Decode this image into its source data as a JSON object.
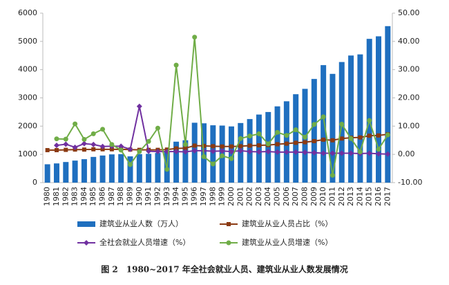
{
  "chart_data": {
    "type": "bar",
    "caption": "图 2　1980~2017 年全社会就业人员、建筑业从业人数发展情况",
    "categories": [
      "1980",
      "1981",
      "1982",
      "1983",
      "1984",
      "1985",
      "1986",
      "1987",
      "1988",
      "1989",
      "1990",
      "1991",
      "1992",
      "1993",
      "1994",
      "1995",
      "1996",
      "1997",
      "1998",
      "1999",
      "2000",
      "2001",
      "2002",
      "2003",
      "2004",
      "2005",
      "2006",
      "2007",
      "2008",
      "2009",
      "2010",
      "2011",
      "2012",
      "2013",
      "2014",
      "2015",
      "2016",
      "2017"
    ],
    "series": [
      {
        "name": "建筑业从业人数（万人）",
        "type": "bar",
        "color": "#1f6fbf",
        "values": [
          650,
          680,
          730,
          780,
          830,
          910,
          960,
          1000,
          1010,
          930,
          1010,
          1020,
          1050,
          1100,
          1450,
          1500,
          2120,
          2100,
          2030,
          2020,
          1990,
          2110,
          2250,
          2410,
          2500,
          2700,
          2880,
          3130,
          3320,
          3670,
          4160,
          3850,
          4270,
          4500,
          4540,
          5090,
          5180,
          5540
        ]
      },
      {
        "name": "建筑业从业人员占比（%）",
        "type": "line",
        "axis": "y2",
        "color": "#8b3a12",
        "marker": "square",
        "values": [
          1.5,
          1.5,
          1.6,
          1.7,
          1.7,
          1.8,
          1.8,
          1.8,
          1.8,
          1.7,
          1.6,
          1.6,
          1.6,
          1.7,
          2.1,
          2.2,
          3.1,
          3.0,
          2.9,
          2.8,
          2.8,
          2.9,
          3.1,
          3.2,
          3.3,
          3.6,
          3.8,
          4.1,
          4.3,
          4.7,
          5.2,
          5.0,
          5.6,
          5.9,
          6.0,
          6.6,
          6.7,
          7.1
        ]
      },
      {
        "name": "全社会就业人员增速（%）",
        "type": "line",
        "axis": "y2",
        "color": "#7030a0",
        "marker": "diamond",
        "values": [
          null,
          3.2,
          3.6,
          2.5,
          3.8,
          3.5,
          2.8,
          2.9,
          2.9,
          1.8,
          17.0,
          1.1,
          1.0,
          1.0,
          1.0,
          0.9,
          1.3,
          1.3,
          1.1,
          1.2,
          1.0,
          1.3,
          1.0,
          0.9,
          1.0,
          0.8,
          0.8,
          0.8,
          0.7,
          0.6,
          0.4,
          0.4,
          0.4,
          0.4,
          0.3,
          0.4,
          0.2,
          0.1
        ]
      },
      {
        "name": "建筑业从业人员增速（%）",
        "type": "line",
        "axis": "y2",
        "color": "#70ad47",
        "marker": "circle",
        "values": [
          null,
          5.5,
          5.4,
          10.8,
          5.3,
          7.3,
          8.9,
          3.5,
          1.5,
          -3.6,
          1.0,
          4.6,
          9.3,
          -5.3,
          31.6,
          3.5,
          41.5,
          -0.8,
          -3.4,
          -0.5,
          -1.5,
          5.6,
          6.5,
          7.3,
          3.7,
          7.8,
          6.7,
          8.7,
          6.1,
          10.6,
          13.3,
          -7.4,
          10.7,
          5.6,
          0.9,
          12.0,
          1.8,
          6.9
        ]
      }
    ],
    "ylim": [
      0,
      6000
    ],
    "yticks": [
      0,
      1000,
      2000,
      3000,
      4000,
      5000,
      6000
    ],
    "y2lim": [
      -10,
      50
    ],
    "y2ticks": [
      {
        "value": -10,
        "label": "-10.00"
      },
      {
        "value": 0,
        "label": "0.00"
      },
      {
        "value": 10,
        "label": "10.00"
      },
      {
        "value": 20,
        "label": "20.00"
      },
      {
        "value": 30,
        "label": "30.00"
      },
      {
        "value": 40,
        "label": "40.00"
      },
      {
        "value": 50,
        "label": "50.00"
      }
    ],
    "grid": false
  }
}
